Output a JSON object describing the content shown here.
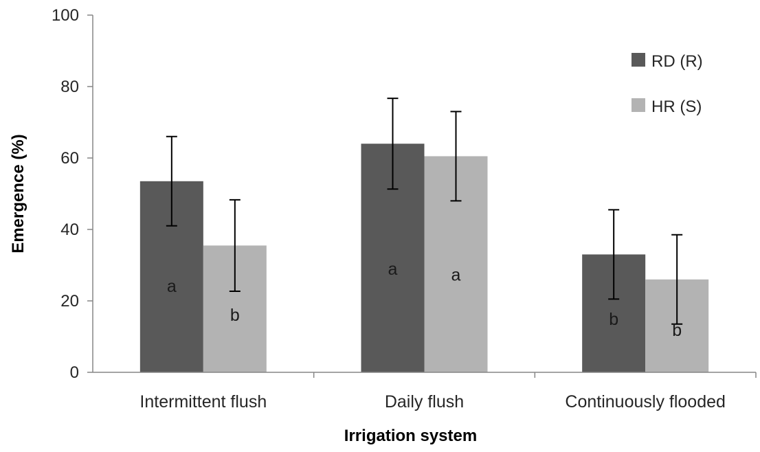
{
  "chart_data": {
    "type": "bar",
    "title": "",
    "xlabel": "Irrigation system",
    "ylabel": "Emergence (%)",
    "ylim": [
      0,
      100
    ],
    "yticks": [
      "0",
      "20",
      "40",
      "60",
      "80",
      "100"
    ],
    "categories": [
      "Intermittent flush",
      "Daily flush",
      "Continuously flooded"
    ],
    "series": [
      {
        "name": "RD (R)",
        "color": "#595959",
        "values": [
          53.5,
          64,
          33
        ],
        "error": [
          12.5,
          12.7,
          12.5
        ],
        "letters": [
          "a",
          "a",
          "b"
        ]
      },
      {
        "name": "HR (S)",
        "color": "#b3b3b3",
        "values": [
          35.5,
          60.5,
          26
        ],
        "error": [
          12.8,
          12.5,
          12.5
        ],
        "letters": [
          "b",
          "a",
          "b"
        ]
      }
    ],
    "grid": false,
    "legend": "top-right"
  }
}
